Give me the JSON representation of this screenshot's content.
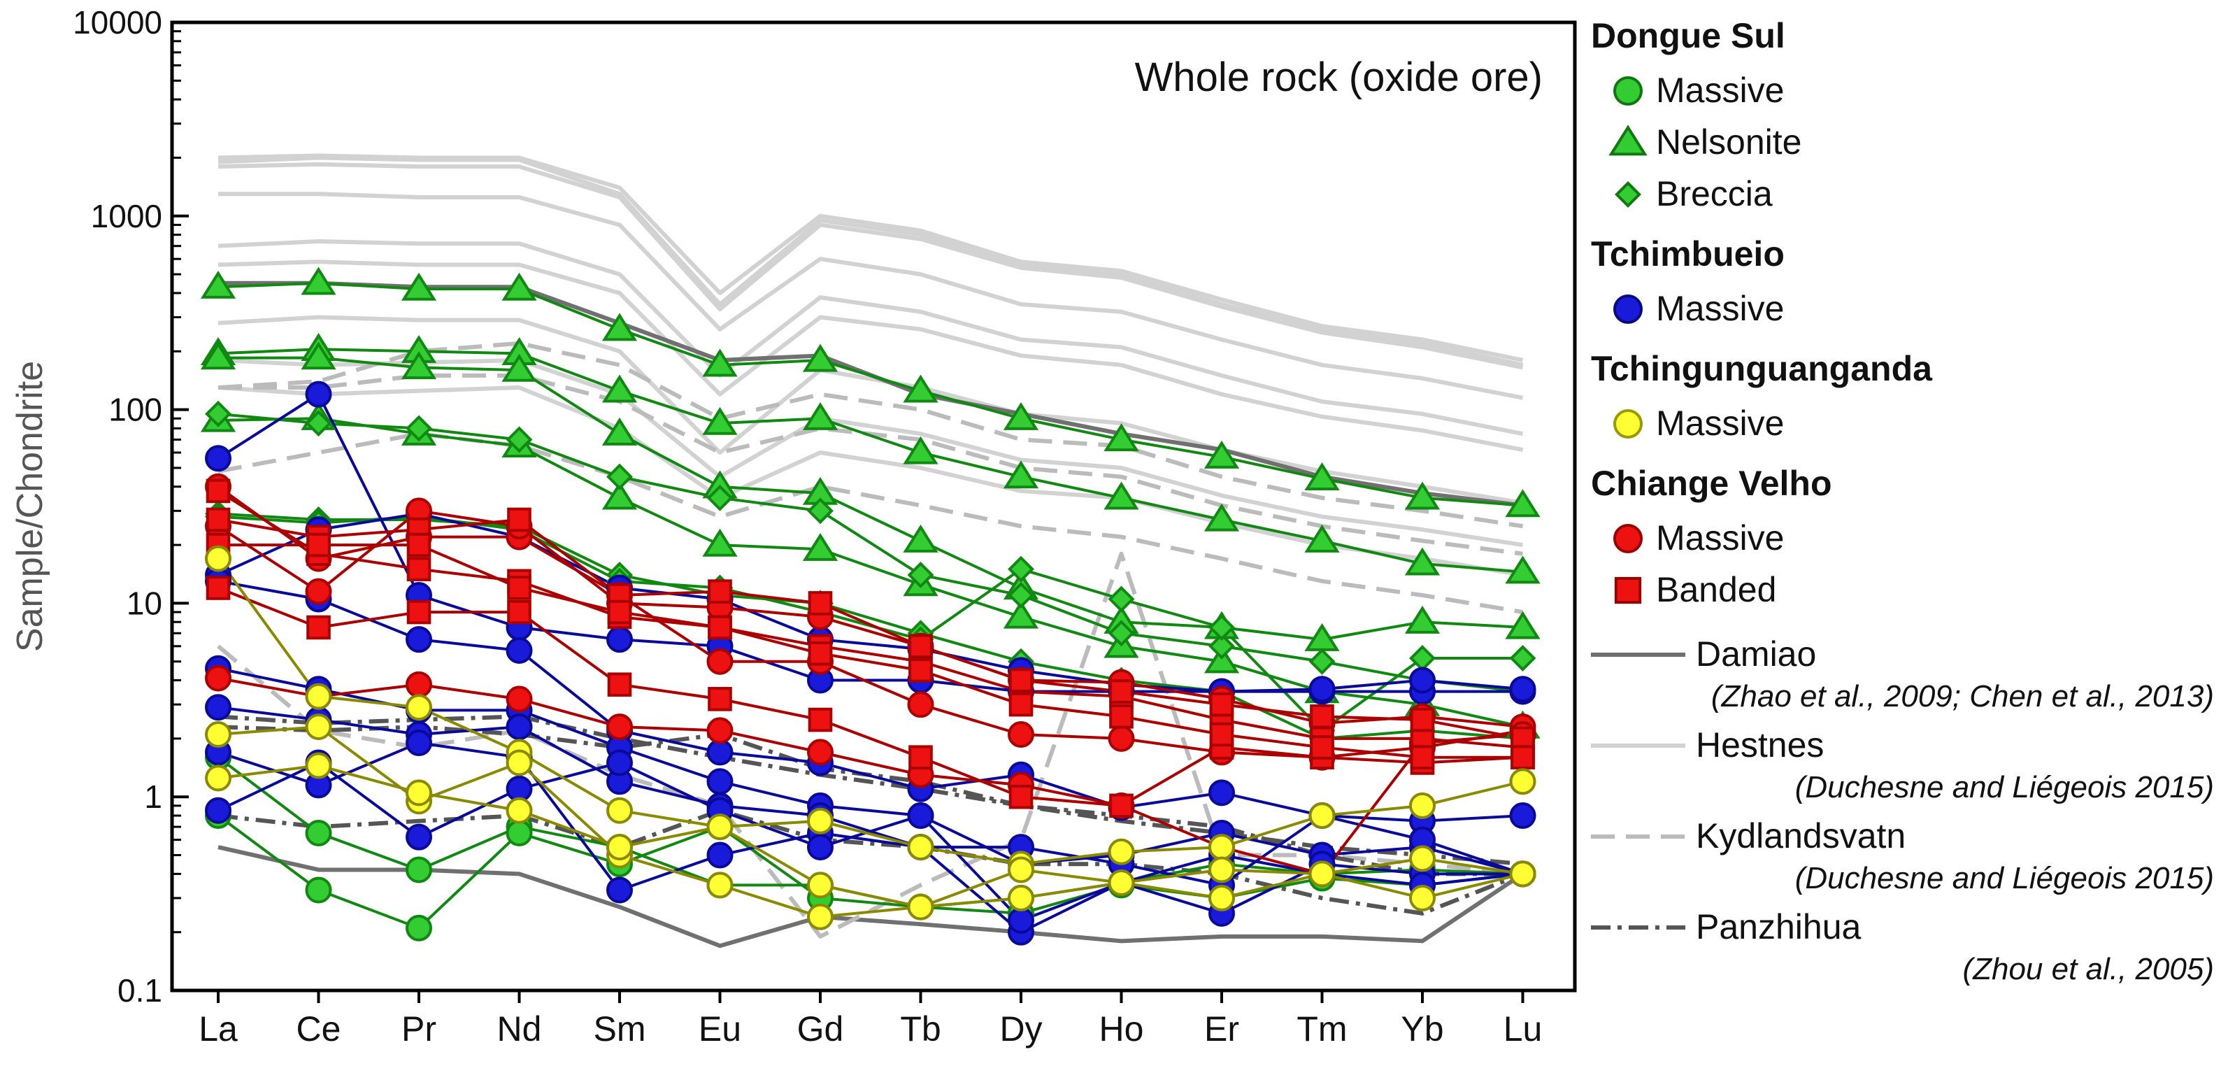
{
  "chart_data": {
    "type": "line",
    "title": "Whole rock (oxide ore)",
    "ylabel": "Sample/Chondrite",
    "xlabel": "",
    "log_scale_y": true,
    "ylim": [
      0.1,
      10000
    ],
    "y_ticks": [
      "0.1",
      "1",
      "10",
      "100",
      "1000",
      "10000"
    ],
    "categories": [
      "La",
      "Ce",
      "Pr",
      "Nd",
      "Sm",
      "Eu",
      "Gd",
      "Tb",
      "Dy",
      "Ho",
      "Er",
      "Tm",
      "Yb",
      "Lu"
    ],
    "legend_placement": "right",
    "legend": {
      "groups": [
        {
          "title": "Dongue Sul",
          "entries": [
            {
              "label": "Massive",
              "marker": "circle",
              "color": "#33cc33",
              "edge": "#117711"
            },
            {
              "label": "Nelsonite",
              "marker": "triangle",
              "color": "#33cc33",
              "edge": "#117711"
            },
            {
              "label": "Breccia",
              "marker": "diamond",
              "color": "#33cc33",
              "edge": "#117711"
            }
          ]
        },
        {
          "title": "Tchimbueio",
          "entries": [
            {
              "label": "Massive",
              "marker": "circle",
              "color": "#1a1adb",
              "edge": "#0a0a80"
            }
          ]
        },
        {
          "title": "Tchingunguanganda",
          "entries": [
            {
              "label": "Massive",
              "marker": "circle",
              "color": "#ffff33",
              "edge": "#999900"
            }
          ]
        },
        {
          "title": "Chiange Velho",
          "entries": [
            {
              "label": "Massive",
              "marker": "circle",
              "color": "#ee1111",
              "edge": "#990000"
            },
            {
              "label": "Banded",
              "marker": "square",
              "color": "#ee1111",
              "edge": "#990000"
            }
          ]
        }
      ],
      "references": [
        {
          "label": "Damiao",
          "cite": "(Zhao et al., 2009; Chen et al., 2013)",
          "style": "solid",
          "color": "#707070"
        },
        {
          "label": "Hestnes",
          "cite": "(Duchesne and Liégeois 2015)",
          "style": "solid",
          "color": "#d2d2d2"
        },
        {
          "label": "Kydlandsvatn",
          "cite": "(Duchesne and Liégeois 2015)",
          "style": "dashed",
          "color": "#bbbbbb"
        },
        {
          "label": "Panzhihua",
          "cite": "(Zhou et al., 2005)",
          "style": "dashdot",
          "color": "#555555"
        }
      ]
    },
    "series": [
      {
        "group": "Hestnes",
        "style": "solid",
        "color": "#d2d2d2",
        "values": [
          1900,
          2000,
          1950,
          1950,
          1300,
          350,
          950,
          800,
          560,
          500,
          350,
          260,
          220,
          170
        ]
      },
      {
        "group": "Hestnes",
        "style": "solid",
        "color": "#d2d2d2",
        "values": [
          2000,
          2050,
          2000,
          2000,
          1400,
          400,
          1000,
          840,
          580,
          520,
          370,
          270,
          230,
          180
        ]
      },
      {
        "group": "Hestnes",
        "style": "solid",
        "color": "#d2d2d2",
        "values": [
          1800,
          1850,
          1800,
          1800,
          1250,
          330,
          900,
          760,
          540,
          480,
          340,
          250,
          210,
          165
        ]
      },
      {
        "group": "Hestnes",
        "style": "solid",
        "color": "#d2d2d2",
        "values": [
          1300,
          1300,
          1250,
          1250,
          900,
          260,
          600,
          500,
          350,
          320,
          230,
          170,
          145,
          115
        ]
      },
      {
        "group": "Hestnes",
        "style": "solid",
        "color": "#d2d2d2",
        "values": [
          700,
          740,
          720,
          720,
          500,
          150,
          380,
          320,
          230,
          210,
          150,
          110,
          95,
          75
        ]
      },
      {
        "group": "Hestnes",
        "style": "solid",
        "color": "#d2d2d2",
        "values": [
          560,
          580,
          560,
          560,
          400,
          120,
          300,
          260,
          190,
          170,
          120,
          92,
          78,
          62
        ]
      },
      {
        "group": "Hestnes",
        "style": "solid",
        "color": "#d2d2d2",
        "values": [
          280,
          300,
          290,
          290,
          200,
          60,
          160,
          130,
          95,
          85,
          62,
          48,
          40,
          33
        ]
      },
      {
        "group": "Hestnes",
        "style": "solid",
        "color": "#d2d2d2",
        "values": [
          180,
          170,
          175,
          180,
          120,
          45,
          90,
          75,
          55,
          50,
          36,
          28,
          24,
          20
        ]
      },
      {
        "group": "Hestnes",
        "style": "solid",
        "color": "#d2d2d2",
        "values": [
          130,
          120,
          125,
          130,
          80,
          35,
          60,
          50,
          38,
          35,
          26,
          20,
          17,
          14
        ]
      },
      {
        "group": "Damiao",
        "style": "solid",
        "color": "#707070",
        "values": [
          450,
          450,
          430,
          430,
          280,
          180,
          190,
          120,
          95,
          75,
          62,
          45,
          37,
          32
        ]
      },
      {
        "group": "Damiao",
        "style": "solid",
        "color": "#707070",
        "values": [
          0.55,
          0.42,
          0.42,
          0.4,
          0.27,
          0.17,
          0.24,
          0.22,
          0.2,
          0.18,
          0.19,
          0.19,
          0.18,
          0.4
        ]
      },
      {
        "group": "Kydlandsvatn",
        "style": "dashed",
        "color": "#bbbbbb",
        "values": [
          130,
          140,
          200,
          220,
          170,
          90,
          120,
          100,
          70,
          65,
          45,
          35,
          30,
          25
        ]
      },
      {
        "group": "Kydlandsvatn",
        "style": "dashed",
        "color": "#bbbbbb",
        "values": [
          130,
          130,
          150,
          150,
          110,
          60,
          80,
          70,
          50,
          45,
          32,
          25,
          21,
          18
        ]
      },
      {
        "group": "Kydlandsvatn",
        "style": "dashed",
        "color": "#bbbbbb",
        "values": [
          48,
          60,
          75,
          65,
          45,
          28,
          40,
          32,
          25,
          22,
          17,
          13,
          11,
          9
        ]
      },
      {
        "group": "Kydlandsvatn",
        "style": "dashed",
        "color": "#bbbbbb",
        "values": [
          6,
          2.2,
          1.8,
          2.2,
          1.3,
          0.9,
          0.19,
          0.35,
          0.6,
          18,
          0.5,
          0.5,
          0.45,
          0.4
        ]
      },
      {
        "group": "Panzhihua",
        "style": "dashdot",
        "color": "#555555",
        "values": [
          2.3,
          2.2,
          2.3,
          2.1,
          1.8,
          2.1,
          1.4,
          1.2,
          0.9,
          0.8,
          0.7,
          0.5,
          0.4,
          0.4
        ]
      },
      {
        "group": "Panzhihua",
        "style": "dashdot",
        "color": "#555555",
        "values": [
          0.8,
          0.7,
          0.75,
          0.8,
          0.55,
          0.85,
          0.6,
          0.55,
          0.45,
          0.45,
          0.4,
          0.3,
          0.25,
          0.4
        ]
      },
      {
        "group": "Panzhihua",
        "style": "dashdot",
        "color": "#555555",
        "values": [
          2.6,
          2.4,
          2.5,
          2.6,
          2,
          1.6,
          1.3,
          1.1,
          0.9,
          0.75,
          0.65,
          0.55,
          0.5,
          0.45
        ]
      },
      {
        "group": "Dongue Sul Nelsonite",
        "marker": "triangle",
        "color": "#33cc33",
        "line": "#118811",
        "values": [
          430,
          450,
          420,
          420,
          260,
          170,
          180,
          125,
          90,
          70,
          57,
          44,
          35,
          32
        ]
      },
      {
        "group": "Dongue Sul Nelsonite",
        "marker": "triangle",
        "color": "#33cc33",
        "line": "#118811",
        "values": [
          195,
          205,
          200,
          195,
          125,
          85,
          90,
          60,
          45,
          35,
          27,
          21,
          16,
          14.5
        ]
      },
      {
        "group": "Dongue Sul Nelsonite",
        "marker": "triangle",
        "color": "#33cc33",
        "line": "#118811",
        "values": [
          185,
          185,
          165,
          160,
          75,
          40,
          37,
          21,
          12,
          8,
          7.5,
          6.5,
          8,
          7.5
        ]
      },
      {
        "group": "Dongue Sul Nelsonite",
        "marker": "triangle",
        "color": "#33cc33",
        "line": "#118811",
        "values": [
          88,
          90,
          75,
          65,
          35,
          20,
          19,
          12.5,
          8.5,
          6,
          5,
          3.5,
          3,
          2.3
        ]
      },
      {
        "group": "Dongue Sul Breccia",
        "marker": "diamond",
        "color": "#33cc33",
        "line": "#118811",
        "values": [
          95,
          85,
          80,
          70,
          45,
          35,
          30,
          14,
          11,
          7,
          6,
          5,
          4,
          3.5
        ]
      },
      {
        "group": "Dongue Sul Breccia",
        "marker": "diamond",
        "color": "#33cc33",
        "line": "#118811",
        "values": [
          29,
          27,
          27,
          25,
          14,
          11,
          10,
          7,
          5,
          4,
          3.5,
          2,
          2.2,
          2
        ]
      },
      {
        "group": "Dongue Sul Breccia",
        "marker": "diamond",
        "color": "#33cc33",
        "line": "#118811",
        "values": [
          28,
          26,
          28,
          24,
          13,
          12,
          9,
          6.5,
          15,
          10.5,
          7.5,
          2.2,
          5.2,
          5.2
        ]
      },
      {
        "group": "Dongue Sul Massive",
        "marker": "circle",
        "color": "#33cc33",
        "line": "#118811",
        "values": [
          1.6,
          0.65,
          0.42,
          0.7,
          0.55,
          0.35,
          0.35,
          0.27,
          0.3,
          0.36,
          0.45,
          0.4,
          0.42,
          0.4
        ]
      },
      {
        "group": "Dongue Sul Massive",
        "marker": "circle",
        "color": "#33cc33",
        "line": "#118811",
        "values": [
          0.8,
          0.33,
          0.21,
          0.65,
          0.45,
          0.7,
          0.3,
          0.27,
          0.25,
          0.35,
          0.3,
          0.38,
          0.35,
          0.4
        ]
      },
      {
        "group": "Tchimbueio Massive",
        "marker": "circle",
        "color": "#1a1adb",
        "line": "#0a0a99",
        "values": [
          56,
          120,
          11,
          7.5,
          6.5,
          6,
          4,
          4,
          3.5,
          3.5,
          3.5,
          3.5,
          3.5,
          3.5
        ]
      },
      {
        "group": "Tchimbueio Massive",
        "marker": "circle",
        "color": "#1a1adb",
        "line": "#0a0a99",
        "values": [
          14,
          24,
          29,
          22,
          12,
          10.5,
          6.5,
          5.8,
          4.5,
          3.8,
          3.5,
          3.6,
          4,
          3.6
        ]
      },
      {
        "group": "Tchimbueio Massive",
        "marker": "circle",
        "color": "#1a1adb",
        "line": "#0a0a99",
        "values": [
          13,
          10.5,
          6.5,
          5.7,
          2.2,
          1.7,
          1.5,
          1.1,
          1.3,
          0.88,
          1.05,
          0.8,
          0.75,
          0.8
        ]
      },
      {
        "group": "Tchimbueio Massive",
        "marker": "circle",
        "color": "#1a1adb",
        "line": "#0a0a99",
        "values": [
          4.6,
          3.6,
          2.8,
          2.8,
          1.8,
          1.2,
          0.9,
          0.8,
          0.45,
          0.5,
          0.65,
          0.5,
          0.55,
          0.4
        ]
      },
      {
        "group": "Tchimbueio Massive",
        "marker": "circle",
        "color": "#1a1adb",
        "line": "#0a0a99",
        "values": [
          2.9,
          2.5,
          2.1,
          2.3,
          1.2,
          0.9,
          0.8,
          0.55,
          0.55,
          0.45,
          0.35,
          0.8,
          0.6,
          0.4
        ]
      },
      {
        "group": "Tchimbueio Massive",
        "marker": "circle",
        "color": "#1a1adb",
        "line": "#0a0a99",
        "values": [
          1.7,
          1.15,
          1.9,
          1.6,
          0.33,
          0.5,
          0.65,
          0.55,
          0.2,
          0.36,
          0.25,
          0.45,
          0.4,
          0.4
        ]
      },
      {
        "group": "Tchimbueio Massive",
        "marker": "circle",
        "color": "#1a1adb",
        "line": "#0a0a99",
        "values": [
          0.85,
          1.5,
          0.62,
          1.1,
          1.5,
          0.85,
          0.55,
          0.8,
          0.23,
          0.36,
          0.5,
          0.4,
          0.35,
          0.4
        ]
      },
      {
        "group": "Chiange Velho Massive",
        "marker": "circle",
        "color": "#ee1111",
        "line": "#aa0000",
        "values": [
          40,
          17,
          22,
          22,
          11,
          5,
          5,
          3,
          2.1,
          2,
          1.7,
          1.6,
          1.8,
          2.2
        ]
      },
      {
        "group": "Chiange Velho Massive",
        "marker": "circle",
        "color": "#ee1111",
        "line": "#aa0000",
        "values": [
          25,
          11.5,
          30,
          25,
          10,
          9.5,
          8.5,
          6,
          4,
          3.9,
          3.2,
          2.4,
          2.6,
          2.3
        ]
      },
      {
        "group": "Chiange Velho Massive",
        "marker": "circle",
        "color": "#ee1111",
        "line": "#aa0000",
        "values": [
          4.1,
          3.3,
          3.8,
          3.2,
          2.3,
          2.2,
          1.7,
          1.3,
          1.15,
          0.9,
          0.55,
          0.4,
          1.9,
          2.1
        ]
      },
      {
        "group": "Chiange Velho Banded",
        "marker": "square",
        "color": "#ee1111",
        "line": "#aa0000",
        "values": [
          38,
          18,
          15,
          13,
          8.5,
          7.5,
          6,
          5,
          3.5,
          3.3,
          2.5,
          2,
          2,
          1.8
        ]
      },
      {
        "group": "Chiange Velho Banded",
        "marker": "square",
        "color": "#ee1111",
        "line": "#aa0000",
        "values": [
          12,
          7.5,
          9,
          9,
          3.8,
          3.2,
          2.5,
          1.6,
          1,
          0.9,
          1.8,
          1.6,
          1.5,
          1.6
        ]
      },
      {
        "group": "Chiange Velho Banded",
        "marker": "square",
        "color": "#ee1111",
        "line": "#aa0000",
        "values": [
          27,
          22,
          24,
          27,
          11,
          11.5,
          10,
          6,
          4,
          3.5,
          3,
          2.6,
          2.5,
          2
        ]
      },
      {
        "group": "Chiange Velho Banded",
        "marker": "square",
        "color": "#ee1111",
        "line": "#aa0000",
        "values": [
          20,
          20,
          20,
          12,
          9,
          7.5,
          5.5,
          4.5,
          3,
          2.6,
          2.1,
          1.8,
          1.6,
          1.6
        ]
      },
      {
        "group": "Tchingunguanganda Massive",
        "marker": "circle",
        "color": "#ffff33",
        "line": "#8a8a00",
        "values": [
          17,
          3.3,
          2.9,
          1.7,
          0.85,
          0.7,
          0.75,
          0.55,
          0.45,
          0.52,
          0.55,
          0.8,
          0.9,
          1.2
        ]
      },
      {
        "group": "Tchingunguanganda Massive",
        "marker": "circle",
        "color": "#ffff33",
        "line": "#8a8a00",
        "values": [
          2.1,
          2.3,
          0.95,
          1.5,
          0.5,
          0.35,
          0.24,
          0.27,
          0.42,
          0.36,
          0.42,
          0.4,
          0.48,
          0.4
        ]
      },
      {
        "group": "Tchingunguanganda Massive",
        "marker": "circle",
        "color": "#ffff33",
        "line": "#8a8a00",
        "values": [
          1.25,
          1.45,
          1.05,
          0.85,
          0.55,
          0.7,
          0.35,
          0.27,
          0.3,
          0.36,
          0.3,
          0.4,
          0.3,
          0.4
        ]
      }
    ]
  }
}
